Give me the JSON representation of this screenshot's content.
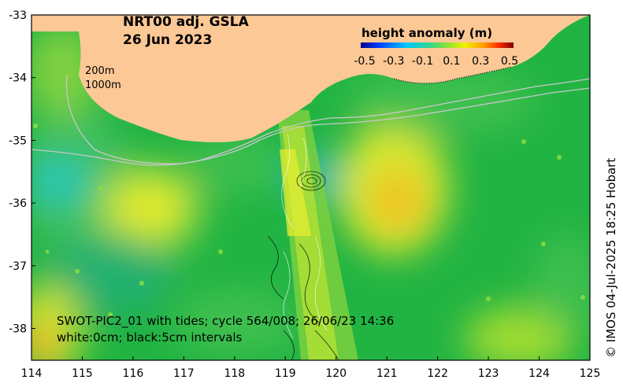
{
  "title": {
    "line1": "NRT00 adj. GSLA",
    "line2": "26 Jun 2023"
  },
  "colorbar": {
    "title": "height anomaly (m)",
    "ticks": [
      "-0.5",
      "-0.3",
      "-0.1",
      "0.1",
      "0.3",
      "0.5"
    ],
    "colors": [
      "#00008f",
      "#0050ff",
      "#00d0ff",
      "#40e0a0",
      "#90e040",
      "#f0f000",
      "#ffa000",
      "#ff3000",
      "#800000"
    ]
  },
  "isobaths": {
    "label1": "200m",
    "label2": "1000m"
  },
  "swath_note": {
    "line1": "SWOT-PIC2_01 with tides; cycle 564/008; 26/06/23 14:36",
    "line2": "white:0cm; black:5cm intervals"
  },
  "credit": "© IMOS 04-Jul-2025 18:25 Hobart",
  "axes": {
    "x_ticks": [
      "114",
      "115",
      "116",
      "117",
      "118",
      "119",
      "120",
      "121",
      "122",
      "123",
      "124",
      "125"
    ],
    "y_ticks": [
      "-33",
      "-34",
      "-35",
      "-36",
      "-37",
      "-38"
    ]
  },
  "colors": {
    "land": "#fbc896",
    "background": "#22b443",
    "isobath": "#c8c8c8"
  }
}
